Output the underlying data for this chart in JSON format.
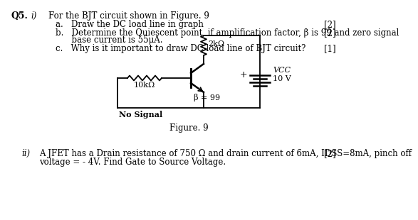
{
  "title_q": "Q5.",
  "roman_i": "i)",
  "roman_ii": "ii)",
  "q5_header": "For the BJT circuit shown in Figure. 9",
  "part_a": "a.   Draw the DC load line in graph",
  "part_b": "b.   Determine the Quiescent point, if amplification factor, β is 99 and zero signal",
  "part_b2": "      base current is 55μA.",
  "part_c": "c.   Why is it important to draw DC load line of BJT circuit?",
  "marks_a": "[2]",
  "marks_b": "[2]",
  "marks_c": "[1]",
  "fig_label": "Figure. 9",
  "r1_label": "2kΩ",
  "r2_label": "10kΩ",
  "beta_label": "β = 99",
  "vcc_label": "VCC",
  "vcc_val": "10 V",
  "no_signal": "No Signal",
  "q5ii_text": "A JFET has a Drain resistance of 750 Ω and drain current of 6mA, IDSS=8mA, pinch off",
  "q5ii_text2": "voltage = - 4V. Find Gate to Source Voltage.",
  "marks_ii": "[2]",
  "bg_color": "#ffffff",
  "text_color": "#000000",
  "font_size": 8.5
}
